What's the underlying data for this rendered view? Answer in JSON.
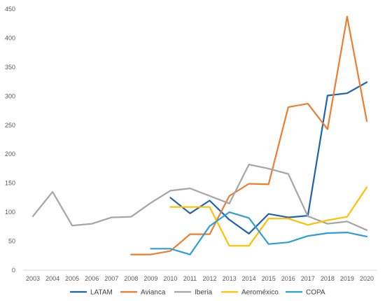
{
  "chart_data": {
    "type": "line",
    "title": "",
    "xlabel": "",
    "ylabel": "",
    "x": [
      "2003",
      "2004",
      "2005",
      "2006",
      "2007",
      "2008",
      "2009",
      "2010",
      "2011",
      "2012",
      "2013",
      "2014",
      "2015",
      "2016",
      "2017",
      "2018",
      "2019",
      "2020"
    ],
    "ylim": [
      0,
      450
    ],
    "yticks": [
      "0",
      "50",
      "100",
      "150",
      "200",
      "250",
      "300",
      "350",
      "400",
      "450"
    ],
    "grid": false,
    "legend": "bottom",
    "series": [
      {
        "name": "LATAM",
        "color": "#1f62ad",
        "values": [
          null,
          null,
          null,
          null,
          null,
          null,
          null,
          125,
          98,
          120,
          87,
          63,
          97,
          91,
          94,
          301,
          305,
          324
        ]
      },
      {
        "name": "Avianca",
        "color": "#ed7d31",
        "values": [
          null,
          null,
          null,
          null,
          null,
          27,
          27,
          33,
          62,
          62,
          128,
          149,
          148,
          281,
          287,
          243,
          437,
          257
        ]
      },
      {
        "name": "Iberia",
        "color": "#a5a5a5",
        "values": [
          93,
          135,
          77,
          80,
          91,
          92,
          116,
          137,
          141,
          128,
          115,
          182,
          175,
          166,
          93,
          80,
          84,
          69
        ]
      },
      {
        "name": "Aeroméxico",
        "color": "#ffc000",
        "values": [
          null,
          null,
          null,
          null,
          null,
          null,
          null,
          109,
          109,
          109,
          42,
          42,
          89,
          89,
          78,
          86,
          92,
          143
        ]
      },
      {
        "name": "COPA",
        "color": "#2e9fd6",
        "values": [
          null,
          null,
          null,
          null,
          null,
          null,
          37,
          37,
          27,
          76,
          100,
          90,
          45,
          48,
          59,
          64,
          65,
          58
        ]
      }
    ]
  }
}
